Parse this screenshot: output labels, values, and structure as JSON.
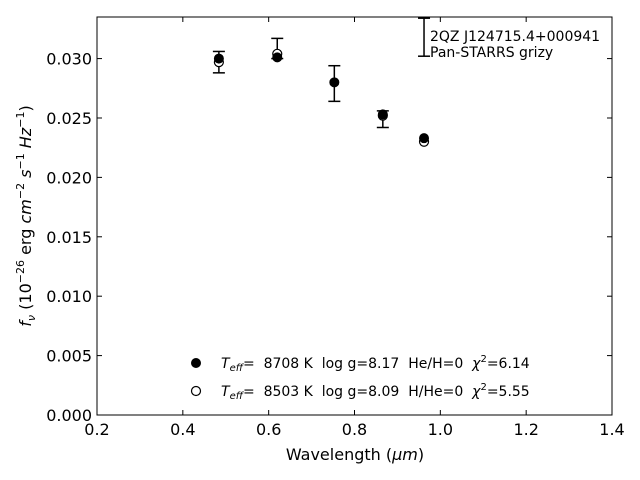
{
  "chart_data": {
    "type": "scatter",
    "xlabel": "Wavelength (μm)",
    "xlabel_main": "Wavelength (",
    "xlabel_unit": "μm",
    "xlabel_close": ")",
    "ylabel_parts": {
      "f": "f",
      "nu": "ν",
      "open": " (10",
      "exp1": "−26",
      "erg": " erg ",
      "cm": "cm",
      "exp2": "−2",
      "s": " s",
      "exp3": "−1",
      "hz": " Hz",
      "exp4": "−1",
      "close": ")"
    },
    "xlim": [
      0.2,
      1.4
    ],
    "ylim": [
      0.0,
      0.0335
    ],
    "xticks": [
      "0.2",
      "0.4",
      "0.6",
      "0.8",
      "1.0",
      "1.2",
      "1.4"
    ],
    "yticks": [
      "0.000",
      "0.005",
      "0.010",
      "0.015",
      "0.020",
      "0.025",
      "0.030"
    ],
    "annotation": {
      "object": "2QZ J124715.4+000941",
      "survey": "Pan-STARRS grizy"
    },
    "observed": {
      "x": [
        0.484,
        0.62,
        0.753,
        0.866,
        0.962
      ],
      "y": [
        0.0297,
        0.0303,
        0.0279,
        0.0249,
        0.0302
      ],
      "yerr_low": [
        0.0009,
        0.0003,
        0.0015,
        0.0007,
        0.0
      ],
      "yerr_high": [
        0.0009,
        0.0014,
        0.0015,
        0.0007,
        0.0032
      ]
    },
    "series": [
      {
        "marker": "filled",
        "teff_label": "T",
        "teff_sub": "eff",
        "text": "=  8708 K  log g=8.17  He/H=0  ",
        "chi_label": "χ",
        "chi_sup": "2",
        "chi_value": "=6.14",
        "x": [
          0.484,
          0.62,
          0.753,
          0.866,
          0.962
        ],
        "y": [
          0.03,
          0.0301,
          0.028,
          0.0253,
          0.0233
        ]
      },
      {
        "marker": "open",
        "teff_label": "T",
        "teff_sub": "eff",
        "text": "=  8503 K  log g=8.09  H/He=0  ",
        "chi_label": "χ",
        "chi_sup": "2",
        "chi_value": "=5.55",
        "x": [
          0.484,
          0.62,
          0.866,
          0.962
        ],
        "y": [
          0.0297,
          0.0304,
          0.0252,
          0.023
        ]
      }
    ],
    "grid": false,
    "legend_placement": "bottom-center"
  },
  "colors": {
    "axis": "#000000",
    "marker": "#000000",
    "background": "#ffffff"
  }
}
